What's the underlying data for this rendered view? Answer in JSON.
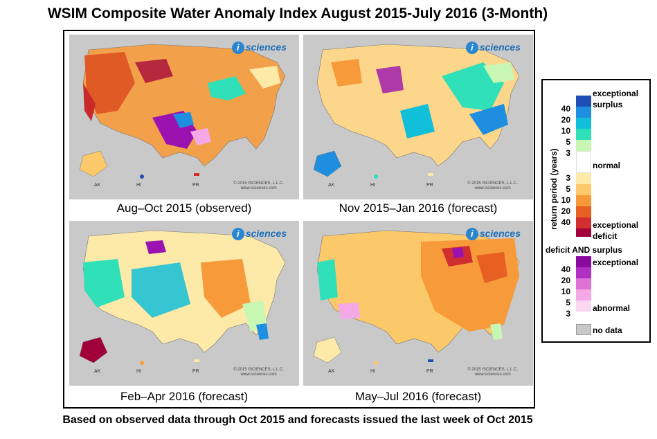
{
  "title": "WSIM Composite Water Anomaly Index August 2015-July 2016 (3-Month)",
  "footer": "Based on observed data through Oct 2015 and forecasts issued the last week of Oct 2015",
  "brand": {
    "mark": "i",
    "text": "sciences",
    "color": "#1e6fb8"
  },
  "panels": [
    {
      "caption": "Aug–Oct 2015 (observed)",
      "region_labels": [
        "AK",
        "HI",
        "PR"
      ],
      "copyright": "© 2015 ISCIENCES, L.L.C.",
      "url": "www.isciences.com"
    },
    {
      "caption": "Nov 2015–Jan 2016 (forecast)",
      "region_labels": [
        "AK",
        "HI",
        "PR"
      ],
      "copyright": "© 2015 ISCIENCES, L.L.C.",
      "url": "www.isciences.com"
    },
    {
      "caption": "Feb–Apr 2016 (forecast)",
      "region_labels": [
        "AK",
        "HI",
        "PR"
      ],
      "copyright": "© 2015 ISCIENCES, L.L.C.",
      "url": "www.isciences.com"
    },
    {
      "caption": "May–Jul 2016 (forecast)",
      "region_labels": [
        "AK",
        "HI",
        "PR"
      ],
      "copyright": "© 2015 ISCIENCES, L.L.C.",
      "url": "www.isciences.com"
    }
  ],
  "legend": {
    "axis_label": "return period (years)",
    "surplus_label_1": "exceptional",
    "surplus_label_2": "surplus",
    "normal_label": "normal",
    "deficit_label_1": "exceptional",
    "deficit_label_2": "deficit",
    "both_header": "deficit AND surplus",
    "both_top_label": "exceptional",
    "both_bottom_label": "abnormal",
    "nodata_label": "no data",
    "surplus_ticks": [
      "40",
      "20",
      "10",
      "5",
      "3"
    ],
    "deficit_ticks": [
      "3",
      "5",
      "10",
      "20",
      "40"
    ],
    "both_ticks": [
      "40",
      "20",
      "10",
      "5",
      "3"
    ],
    "surplus_colors": [
      "#1f4fb5",
      "#1e8fe0",
      "#12bfd9",
      "#2fe0b8",
      "#c8f7b3"
    ],
    "normal_color": "#ffffff",
    "deficit_colors": [
      "#fde9a8",
      "#fcc96a",
      "#f79a3a",
      "#e85f22",
      "#d12f2f",
      "#a1003a"
    ],
    "both_colors": [
      "#8a0aa0",
      "#b12fc2",
      "#de72d6",
      "#f5a8e6",
      "#fbd8f2"
    ],
    "nodata_color": "#c8c8c8"
  }
}
